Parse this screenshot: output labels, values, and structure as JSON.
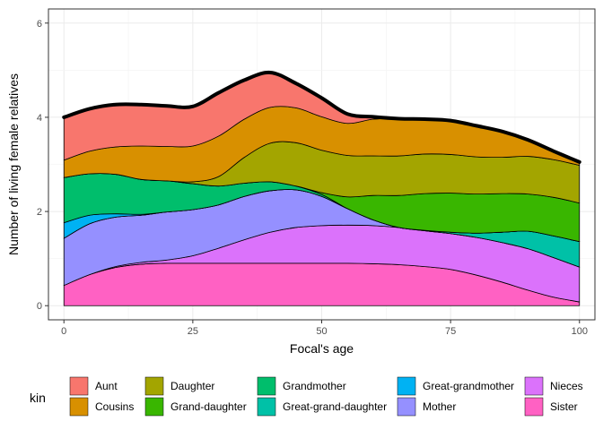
{
  "chart_data": {
    "type": "area",
    "stacked": true,
    "xlabel": "Focal's age",
    "ylabel": "Number of living female relatives",
    "xlim": [
      -3,
      103
    ],
    "ylim": [
      -0.3,
      6.3
    ],
    "xticks": [
      0,
      25,
      50,
      75,
      100
    ],
    "yticks": [
      0,
      2,
      4,
      6
    ],
    "grid": true,
    "legend_title": "kin",
    "legend_position": "bottom",
    "x": [
      0,
      5,
      10,
      15,
      20,
      25,
      30,
      35,
      40,
      45,
      50,
      55,
      60,
      65,
      70,
      75,
      80,
      85,
      90,
      95,
      100
    ],
    "series": [
      {
        "name": "Sister",
        "color": "#FF61C3",
        "values": [
          0.43,
          0.66,
          0.81,
          0.88,
          0.9,
          0.9,
          0.9,
          0.9,
          0.9,
          0.9,
          0.9,
          0.9,
          0.89,
          0.87,
          0.83,
          0.77,
          0.65,
          0.5,
          0.33,
          0.18,
          0.08
        ]
      },
      {
        "name": "Nieces",
        "color": "#DB72FB",
        "values": [
          0.0,
          0.0,
          0.02,
          0.04,
          0.07,
          0.16,
          0.32,
          0.5,
          0.66,
          0.76,
          0.8,
          0.81,
          0.81,
          0.79,
          0.76,
          0.76,
          0.8,
          0.84,
          0.88,
          0.84,
          0.74
        ]
      },
      {
        "name": "Mother",
        "color": "#9590FF",
        "values": [
          1.0,
          1.08,
          1.05,
          1.0,
          1.02,
          0.98,
          0.92,
          0.92,
          0.88,
          0.8,
          0.62,
          0.35,
          0.12,
          0.0,
          0.0,
          0.0,
          0.0,
          0.0,
          0.0,
          0.0,
          0.0
        ]
      },
      {
        "name": "Great-grand-daughter",
        "color": "#00C1A7",
        "values": [
          0.0,
          0.0,
          0.0,
          0.0,
          0.0,
          0.0,
          0.0,
          0.0,
          0.0,
          0.0,
          0.0,
          0.0,
          0.0,
          0.0,
          0.01,
          0.03,
          0.09,
          0.22,
          0.37,
          0.46,
          0.54
        ]
      },
      {
        "name": "Great-grandmother",
        "color": "#00B2F3",
        "values": [
          0.33,
          0.18,
          0.07,
          0.02,
          0.0,
          0.0,
          0.0,
          0.0,
          0.0,
          0.0,
          0.0,
          0.0,
          0.0,
          0.0,
          0.0,
          0.0,
          0.0,
          0.0,
          0.0,
          0.0,
          0.0
        ]
      },
      {
        "name": "Grandmother",
        "color": "#00BE6C",
        "values": [
          0.96,
          0.88,
          0.84,
          0.74,
          0.66,
          0.55,
          0.4,
          0.28,
          0.19,
          0.08,
          0.04,
          0.0,
          0.0,
          0.0,
          0.0,
          0.0,
          0.0,
          0.0,
          0.0,
          0.0,
          0.0
        ]
      },
      {
        "name": "Grand-daughter",
        "color": "#39B600",
        "values": [
          0.0,
          0.0,
          0.0,
          0.0,
          0.0,
          0.0,
          0.0,
          0.0,
          0.0,
          0.0,
          0.04,
          0.25,
          0.52,
          0.68,
          0.78,
          0.83,
          0.83,
          0.82,
          0.79,
          0.82,
          0.82
        ]
      },
      {
        "name": "Daughter",
        "color": "#A3A500",
        "values": [
          0.0,
          0.0,
          0.0,
          0.0,
          0.0,
          0.04,
          0.2,
          0.55,
          0.82,
          0.92,
          0.9,
          0.88,
          0.84,
          0.84,
          0.84,
          0.82,
          0.79,
          0.77,
          0.8,
          0.8,
          0.8
        ]
      },
      {
        "name": "Cousins",
        "color": "#D89000",
        "values": [
          0.37,
          0.48,
          0.58,
          0.71,
          0.73,
          0.76,
          0.86,
          0.81,
          0.76,
          0.74,
          0.71,
          0.68,
          0.78,
          0.79,
          0.74,
          0.72,
          0.66,
          0.55,
          0.35,
          0.18,
          0.07
        ]
      },
      {
        "name": "Aunt",
        "color": "#F8766D",
        "values": [
          0.91,
          0.9,
          0.9,
          0.88,
          0.86,
          0.84,
          0.92,
          0.83,
          0.74,
          0.52,
          0.4,
          0.2,
          0.05,
          0.0,
          0.0,
          0.0,
          0.0,
          0.0,
          0.0,
          0.0,
          0.0
        ]
      }
    ],
    "legend": [
      {
        "name": "Aunt",
        "color": "#F8766D"
      },
      {
        "name": "Cousins",
        "color": "#D89000"
      },
      {
        "name": "Daughter",
        "color": "#A3A500"
      },
      {
        "name": "Grand-daughter",
        "color": "#39B600"
      },
      {
        "name": "Grandmother",
        "color": "#00BE6C"
      },
      {
        "name": "Great-grand-daughter",
        "color": "#00C1A7"
      },
      {
        "name": "Great-grandmother",
        "color": "#00B2F3"
      },
      {
        "name": "Mother",
        "color": "#9590FF"
      },
      {
        "name": "Nieces",
        "color": "#DB72FB"
      },
      {
        "name": "Sister",
        "color": "#FF61C3"
      }
    ]
  }
}
